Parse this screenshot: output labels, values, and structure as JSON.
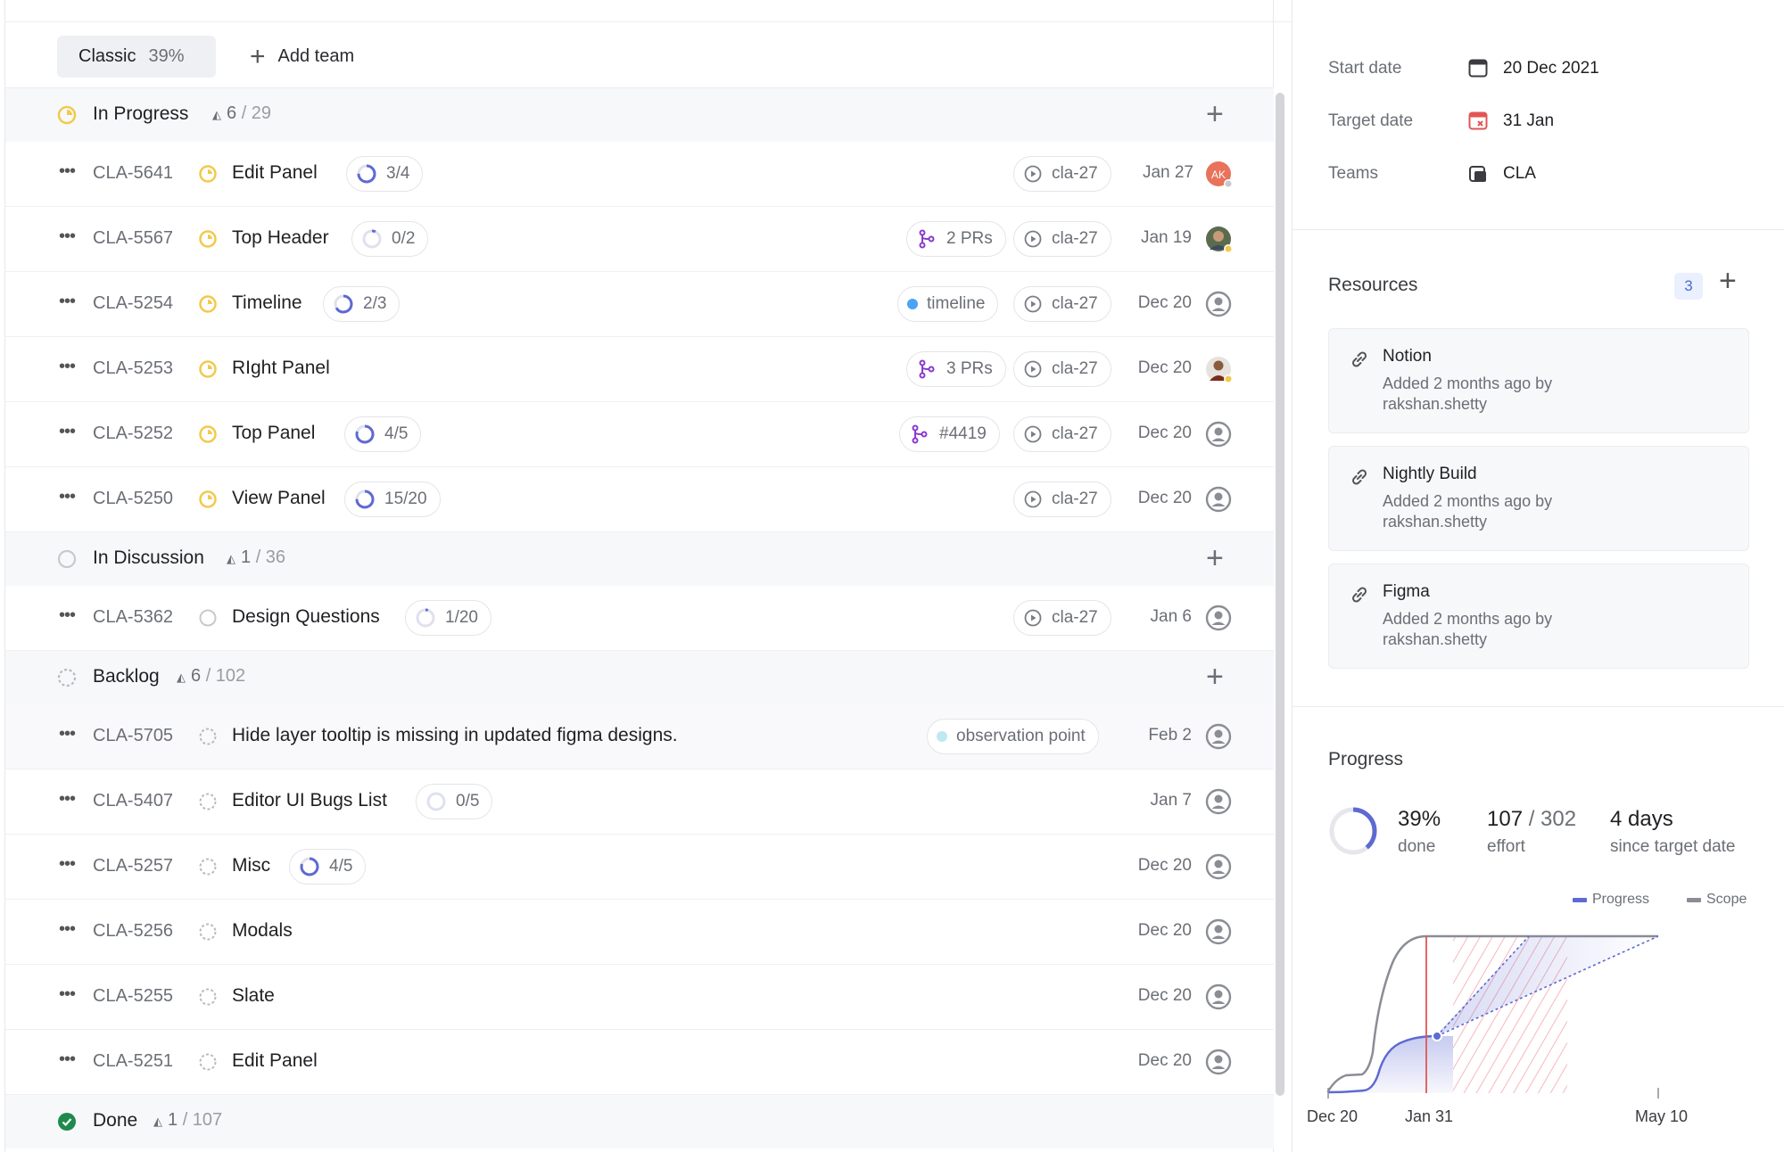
{
  "toolbar": {
    "tab_label": "Classic",
    "tab_pct": "39%",
    "add_team_label": "Add team"
  },
  "groups": [
    {
      "name": "In Progress",
      "count": "6",
      "total": "/ 29"
    },
    {
      "name": "In Discussion",
      "count": "1",
      "total": "/ 36"
    },
    {
      "name": "Backlog",
      "count": "6",
      "total": "/ 102"
    },
    {
      "name": "Done",
      "count": "1",
      "total": "/ 107"
    }
  ],
  "issues": [
    {
      "id": "CLA-5641",
      "title": "Edit Panel",
      "sub": "3/4",
      "pr": "",
      "label": "",
      "cycle": "cla-27",
      "date": "Jan 27",
      "avatar": "AK"
    },
    {
      "id": "CLA-5567",
      "title": "Top Header",
      "sub": "0/2",
      "pr": "2 PRs",
      "label": "",
      "cycle": "cla-27",
      "date": "Jan 19",
      "avatar": ""
    },
    {
      "id": "CLA-5254",
      "title": "Timeline",
      "sub": "2/3",
      "pr": "",
      "label": "timeline",
      "cycle": "cla-27",
      "date": "Dec 20",
      "avatar": ""
    },
    {
      "id": "CLA-5253",
      "title": "RIght Panel",
      "sub": "",
      "pr": "3 PRs",
      "label": "",
      "cycle": "cla-27",
      "date": "Dec 20",
      "avatar": ""
    },
    {
      "id": "CLA-5252",
      "title": "Top Panel",
      "sub": "4/5",
      "pr": "#4419",
      "label": "",
      "cycle": "cla-27",
      "date": "Dec 20",
      "avatar": ""
    },
    {
      "id": "CLA-5250",
      "title": "View Panel",
      "sub": "15/20",
      "pr": "",
      "label": "",
      "cycle": "cla-27",
      "date": "Dec 20",
      "avatar": ""
    },
    {
      "id": "CLA-5362",
      "title": "Design Questions",
      "sub": "1/20",
      "pr": "",
      "label": "",
      "cycle": "cla-27",
      "date": "Jan 6",
      "avatar": ""
    },
    {
      "id": "CLA-5705",
      "title": "Hide layer tooltip is missing in updated figma designs.",
      "sub": "",
      "pr": "",
      "label": "observation point",
      "cycle": "",
      "date": "Feb 2",
      "avatar": ""
    },
    {
      "id": "CLA-5407",
      "title": "Editor UI Bugs List",
      "sub": "0/5",
      "pr": "",
      "label": "",
      "cycle": "",
      "date": "Jan 7",
      "avatar": ""
    },
    {
      "id": "CLA-5257",
      "title": "Misc",
      "sub": "4/5",
      "pr": "",
      "label": "",
      "cycle": "",
      "date": "Dec 20",
      "avatar": ""
    },
    {
      "id": "CLA-5256",
      "title": "Modals",
      "sub": "",
      "pr": "",
      "label": "",
      "cycle": "",
      "date": "Dec 20",
      "avatar": ""
    },
    {
      "id": "CLA-5255",
      "title": "Slate",
      "sub": "",
      "pr": "",
      "label": "",
      "cycle": "",
      "date": "Dec 20",
      "avatar": ""
    },
    {
      "id": "CLA-5251",
      "title": "Edit Panel",
      "sub": "",
      "pr": "",
      "label": "",
      "cycle": "",
      "date": "Dec 20",
      "avatar": ""
    }
  ],
  "side": {
    "start_label": "Start date",
    "start_value": "20 Dec 2021",
    "target_label": "Target date",
    "target_value": "31 Jan",
    "teams_label": "Teams",
    "teams_value": "CLA",
    "resources_label": "Resources",
    "resources_count": "3",
    "resources": [
      {
        "name": "Notion",
        "line1": "Added 2 months ago by",
        "line2": "rakshan.shetty"
      },
      {
        "name": "Nightly Build",
        "line1": "Added 2 months ago by",
        "line2": "rakshan.shetty"
      },
      {
        "name": "Figma",
        "line1": "Added 2 months ago by",
        "line2": "rakshan.shetty"
      }
    ],
    "progress_label": "Progress",
    "done_pct": "39%",
    "done_label": "done",
    "effort_value": "107",
    "effort_total": "/ 302",
    "effort_label": "effort",
    "days_value": "4 days",
    "days_label": "since target date",
    "legend_progress": "Progress",
    "legend_scope": "Scope",
    "axis": [
      "Dec 20",
      "Jan 31",
      "May 10"
    ]
  },
  "colors": {
    "in_progress": "#f2c94c",
    "done": "#27ae60",
    "accent": "#5e6ad2",
    "scope": "#8a8d94",
    "target": "#eb5757"
  }
}
